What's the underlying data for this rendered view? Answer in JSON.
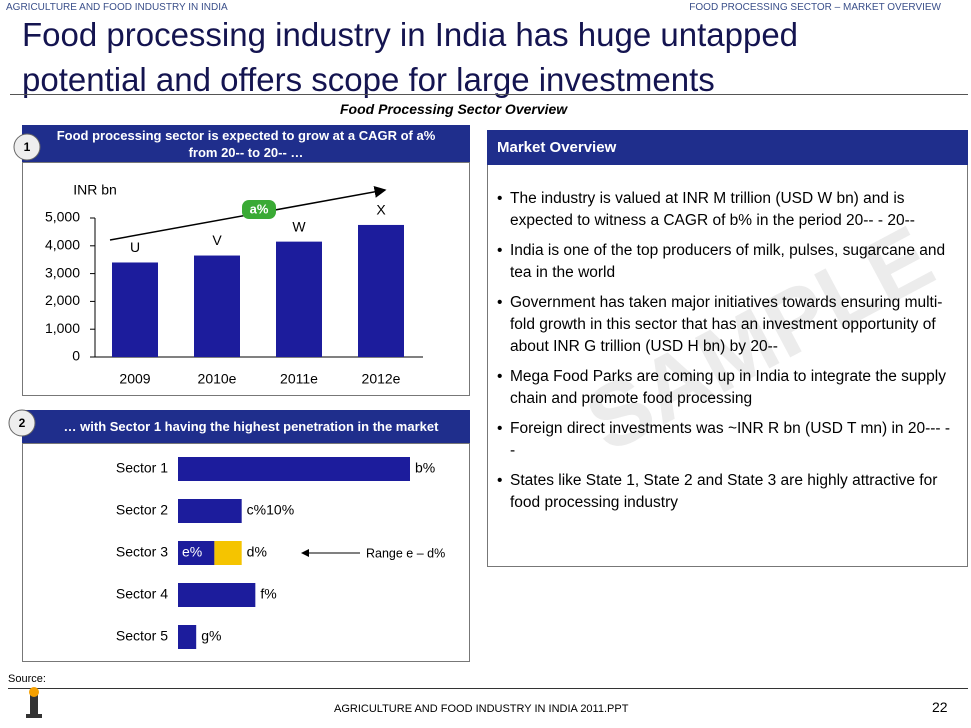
{
  "header": {
    "left": "AGRICULTURE AND FOOD INDUSTRY IN INDIA",
    "right": "FOOD PROCESSING SECTOR – MARKET OVERVIEW",
    "title_lines": [
      "Food processing industry in India has huge untapped",
      "potential and offers scope for large investments"
    ],
    "subtitle": "Food Processing Sector Overview"
  },
  "chart_data": [
    {
      "type": "bar",
      "section_label": "1",
      "title_lines": [
        "Food processing sector is expected to grow at a CAGR of a%",
        "from 20-- to 20-- …"
      ],
      "y_label": "INR bn",
      "annotation": "a%",
      "categories": [
        "2009",
        "2010e",
        "2011e",
        "2012e"
      ],
      "values": [
        3400,
        3650,
        4150,
        4750
      ],
      "value_labels": [
        "U",
        "V",
        "W",
        "X"
      ],
      "color": "#1c1c9c",
      "ylim": [
        0,
        5000
      ],
      "yticks": [
        0,
        {
          "value": 1000,
          "label": "1,000"
        },
        {
          "value": 2000,
          "label": "2,000"
        },
        {
          "value": 3000,
          "label": "3,000"
        },
        {
          "value": 4000,
          "label": "4,000"
        },
        {
          "value": 5000,
          "label": "5,000"
        }
      ]
    },
    {
      "type": "hbar",
      "section_label": "2",
      "title": "… with Sector 1 having the highest penetration in the market",
      "categories": [
        "Sector 1",
        "Sector 2",
        "Sector 3",
        "Sector 4",
        "Sector 5"
      ],
      "series": [
        {
          "color": "#1c1c9c",
          "values": [
            51,
            14,
            8,
            17,
            4
          ],
          "value_labels": [
            "b%",
            "c%10%",
            "e%",
            "f%",
            "g%"
          ]
        },
        {
          "color": "#f5c400",
          "values": [
            null,
            null,
            6,
            null,
            null
          ],
          "value_labels": [
            null,
            null,
            "d%",
            null,
            null
          ]
        }
      ],
      "annotation": "Range e – d%"
    }
  ],
  "market_overview": {
    "title": "Market Overview",
    "bullets": [
      "The industry is valued at INR M trillion (USD W bn) and is expected to witness a CAGR of b% in the period 20-- - 20--",
      "India is one of the top producers of milk, pulses, sugarcane and tea in the world",
      "Government has taken major initiatives towards ensuring multi-fold growth in this sector that has an investment opportunity of about INR G trillion (USD H bn) by 20--",
      "Mega Food Parks are coming up in India to integrate the supply chain and promote food processing",
      "Foreign direct investments was  ~INR R bn (USD T mn) in 20--- --",
      "States like State 1, State 2 and State 3 are highly attractive for food processing industry"
    ]
  },
  "watermark": "SAMPLE",
  "footer": {
    "source": "Source:",
    "center": "AGRICULTURE AND FOOD INDUSTRY IN INDIA 2011.PPT",
    "page": "22"
  }
}
